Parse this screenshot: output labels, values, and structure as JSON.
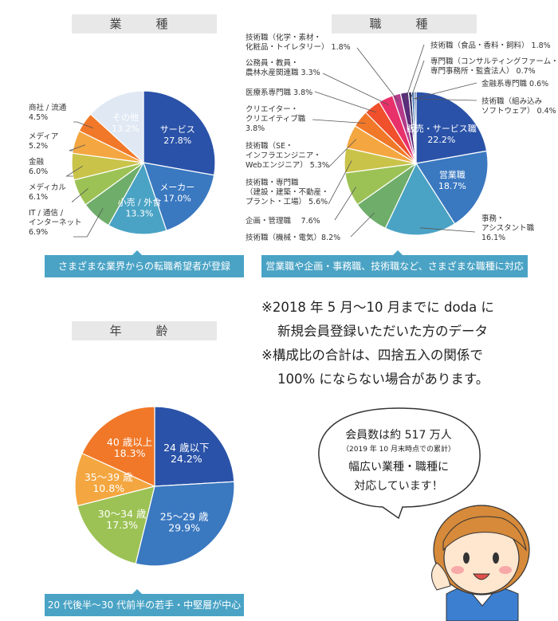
{
  "colors": {
    "header_bg": "#e8e8e8",
    "band": "#4aa3c5",
    "palette": [
      "#2a52a8",
      "#3a78c0",
      "#4aa3c5",
      "#6fad6a",
      "#9cc255",
      "#c9c34a",
      "#f4a640",
      "#f07828",
      "#f0502c",
      "#e8306a",
      "#b43a8a",
      "#5a2e7a",
      "#dfe8f3"
    ]
  },
  "industry": {
    "header": "業　種",
    "band_text": "さまざまな業界からの転職希望者が登録",
    "chart_data": {
      "type": "pie",
      "title": "業　種",
      "slices": [
        {
          "label": "サービス",
          "value": 27.8,
          "display": "27.8%",
          "color": "#2a52a8",
          "inside": true
        },
        {
          "label": "メーカー",
          "value": 17.0,
          "display": "17.0%",
          "color": "#3a78c0",
          "inside": true
        },
        {
          "label": "小売 / 外食",
          "value": 13.3,
          "display": "13.3%",
          "color": "#4aa3c5",
          "inside": true
        },
        {
          "label": "IT / 通信 / インターネット",
          "value": 6.9,
          "display": "6.9%",
          "color": "#6fad6a",
          "inside": false
        },
        {
          "label": "メディカル",
          "value": 6.1,
          "display": "6.1%",
          "color": "#9cc255",
          "inside": false
        },
        {
          "label": "金融",
          "value": 6.0,
          "display": "6.0%",
          "color": "#c9c34a",
          "inside": false
        },
        {
          "label": "メディア",
          "value": 5.2,
          "display": "5.2%",
          "color": "#f4a640",
          "inside": false
        },
        {
          "label": "商社 / 流通",
          "value": 4.5,
          "display": "4.5%",
          "color": "#f07828",
          "inside": false
        },
        {
          "label": "その他",
          "value": 13.2,
          "display": "13.2%",
          "color": "#dfe8f3",
          "inside": true
        }
      ]
    }
  },
  "occupation": {
    "header": "職　種",
    "band_text": "営業職や企画・事務職、技術職など、さまざまな職種に対応",
    "chart_data": {
      "type": "pie",
      "title": "職　種",
      "slices": [
        {
          "label": "販売・サービス職",
          "value": 22.2,
          "display": "22.2%",
          "color": "#2a52a8",
          "inside": true
        },
        {
          "label": "営業職",
          "value": 18.7,
          "display": "18.7%",
          "color": "#3a78c0",
          "inside": true
        },
        {
          "label": "事務・アシスタント職",
          "value": 16.1,
          "display": "16.1%",
          "color": "#4aa3c5",
          "inside": false
        },
        {
          "label": "技術職（機械・電気）",
          "value": 8.2,
          "display": "8.2%",
          "color": "#6fad6a",
          "inside": false
        },
        {
          "label": "企画・管理職",
          "value": 7.6,
          "display": "7.6%",
          "color": "#9cc255",
          "inside": false
        },
        {
          "label": "技術職・専門職（建設・建築・不動産・プラント・工場）",
          "value": 5.6,
          "display": "5.6%",
          "color": "#c9c34a",
          "inside": false
        },
        {
          "label": "技術職（SE・インフラエンジニア・Webエンジニア）",
          "value": 5.3,
          "display": "5.3%",
          "color": "#f4a640",
          "inside": false
        },
        {
          "label": "クリエイター・クリエイティブ職",
          "value": 3.8,
          "display": "3.8%",
          "color": "#f07828",
          "inside": false
        },
        {
          "label": "医療系専門職",
          "value": 3.8,
          "display": "3.8%",
          "color": "#f0502c",
          "inside": false
        },
        {
          "label": "公務員・教員・農林水産関連職",
          "value": 3.3,
          "display": "3.3%",
          "color": "#e8306a",
          "inside": false
        },
        {
          "label": "技術職（化学・素材・化粧品・トイレタリー）",
          "value": 1.8,
          "display": "1.8%",
          "color": "#b43a8a",
          "inside": false
        },
        {
          "label": "技術職（食品・香料・飼料）",
          "value": 1.8,
          "display": "1.8%",
          "color": "#5a2e7a",
          "inside": false
        },
        {
          "label": "専門職（コンサルティングファーム・専門事務所・監査法人）",
          "value": 0.7,
          "display": "0.7%",
          "color": "#2b2b5e",
          "inside": false
        },
        {
          "label": "金融系専門職",
          "value": 0.6,
          "display": "0.6%",
          "color": "#3b6fb5",
          "inside": false
        },
        {
          "label": "技術職（組み込みソフトウェア）",
          "value": 0.4,
          "display": "0.4%",
          "color": "#1d3e80",
          "inside": false
        }
      ]
    }
  },
  "age": {
    "header": "年　齢",
    "band_text": "20 代後半〜30 代前半の若手・中堅層が中心",
    "chart_data": {
      "type": "pie",
      "title": "年　齢",
      "slices": [
        {
          "label": "24 歳以下",
          "value": 24.2,
          "display": "24.2%",
          "color": "#2a52a8"
        },
        {
          "label": "25〜29 歳",
          "value": 29.9,
          "display": "29.9%",
          "color": "#3a78c0"
        },
        {
          "label": "30〜34 歳",
          "value": 17.3,
          "display": "17.3%",
          "color": "#9cc255"
        },
        {
          "label": "35〜39 歳",
          "value": 10.8,
          "display": "10.8%",
          "color": "#f4a640"
        },
        {
          "label": "40 歳以上",
          "value": 18.3,
          "display": "18.3%",
          "color": "#f07828"
        }
      ]
    }
  },
  "notes": [
    "※2018 年 5 月〜10 月までに doda に",
    "新規会員登録いただいた方のデータ",
    "※構成比の合計は、四捨五入の関係で",
    "100% にならない場合があります。"
  ],
  "bubble": {
    "line1": "会員数は約 517 万人",
    "line2": "（2019 年 10 月末時点での累計）",
    "line3": "幅広い業種・職種に",
    "line4": "対応しています！"
  }
}
